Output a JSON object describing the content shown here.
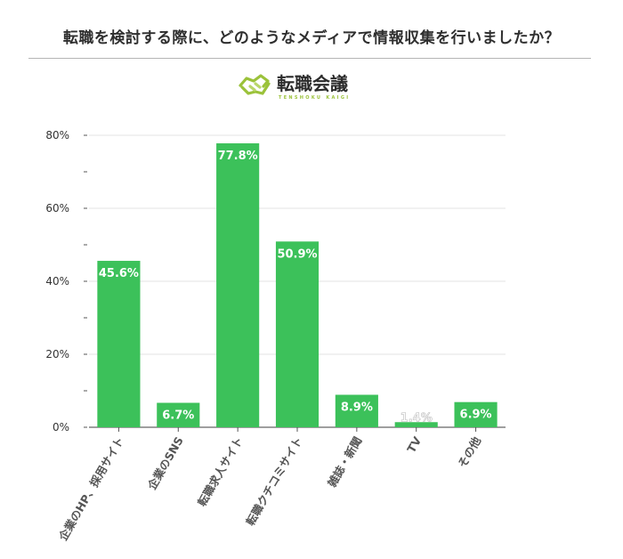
{
  "title": "転職を検討する際に、どのようなメディアで情報収集を行いましたか？",
  "logo": {
    "main": "転職会議",
    "sub": "TENSHOKU KAIGI",
    "color": "#9bc23a",
    "icon": "handshake-icon"
  },
  "chart_data": {
    "type": "bar",
    "categories": [
      "企業のHP、採用サイト",
      "企業のSNS",
      "転職求人サイト",
      "転職クチコミサイト",
      "雑誌・新聞",
      "TV",
      "その他"
    ],
    "values": [
      45.6,
      6.7,
      77.8,
      50.9,
      8.9,
      1.4,
      6.9
    ],
    "data_labels": [
      "45.6%",
      "6.7%",
      "77.8%",
      "50.9%",
      "8.9%",
      "1.4%",
      "6.9%"
    ],
    "ylim": [
      0,
      80
    ],
    "yticks": [
      0,
      20,
      40,
      60,
      80
    ],
    "ytick_labels": [
      "0%",
      "20%",
      "40%",
      "60%",
      "80%"
    ],
    "grid": true,
    "bar_color": "#3cc15a",
    "xlabel": "",
    "ylabel": ""
  }
}
